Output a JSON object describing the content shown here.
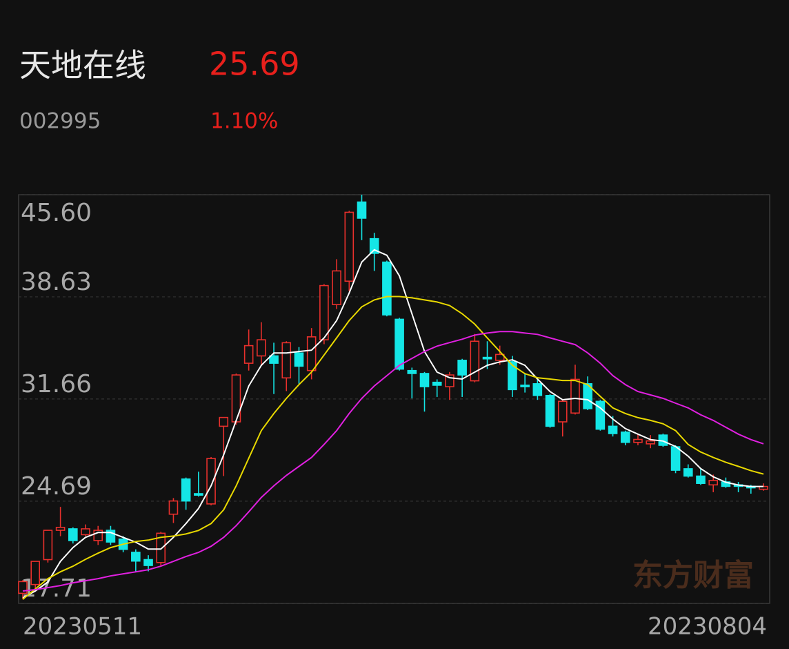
{
  "chart_data": {
    "type": "candlestick",
    "title": "天地在线",
    "price": 25.69,
    "code": "002995",
    "change": {
      "value": 1.1,
      "label": "1.10%"
    },
    "watermark": "东方财富",
    "x": [
      "20230511",
      null,
      null,
      null,
      null,
      null,
      null,
      null,
      null,
      null,
      null,
      null,
      null,
      null,
      null,
      null,
      null,
      null,
      null,
      null,
      null,
      null,
      null,
      null,
      null,
      null,
      null,
      null,
      null,
      null,
      null,
      null,
      null,
      null,
      null,
      null,
      null,
      null,
      null,
      null,
      null,
      null,
      null,
      null,
      null,
      null,
      null,
      null,
      null,
      null,
      null,
      null,
      null,
      null,
      null,
      null,
      null,
      null,
      null,
      "20230804"
    ],
    "open": [
      18.4,
      19.0,
      20.7,
      22.7,
      22.8,
      22.4,
      22.0,
      22.7,
      22.1,
      21.2,
      20.7,
      20.5,
      23.8,
      26.2,
      25.2,
      24.5,
      29.8,
      30.1,
      34.1,
      34.6,
      34.6,
      33.1,
      34.8,
      33.6,
      35.7,
      38.1,
      39.7,
      45.1,
      42.6,
      41.0,
      37.1,
      33.6,
      33.4,
      32.8,
      32.5,
      34.3,
      32.9,
      34.5,
      34.3,
      34.2,
      32.6,
      32.7,
      31.9,
      30.1,
      30.7,
      32.7,
      31.5,
      29.8,
      29.4,
      28.7,
      28.6,
      29.2,
      28.4,
      26.9,
      26.4,
      25.8,
      26.0,
      25.8,
      25.7,
      25.5
    ],
    "high": [
      19.3,
      20.6,
      22.7,
      24.3,
      22.9,
      23.1,
      23.0,
      23.0,
      22.3,
      21.4,
      21.0,
      22.6,
      24.9,
      26.3,
      26.7,
      27.7,
      30.4,
      33.4,
      36.4,
      36.9,
      35.5,
      35.6,
      35.2,
      36.5,
      39.5,
      41.2,
      44.5,
      45.6,
      43.0,
      41.1,
      37.2,
      33.8,
      33.5,
      33.0,
      33.5,
      34.4,
      36.1,
      35.6,
      35.3,
      34.6,
      33.4,
      33.1,
      32.0,
      31.6,
      34.0,
      33.2,
      31.6,
      30.5,
      29.5,
      29.3,
      29.2,
      29.3,
      28.5,
      27.2,
      26.9,
      26.5,
      26.3,
      26.0,
      25.8,
      25.9
    ],
    "low": [
      18.0,
      18.6,
      20.5,
      22.3,
      21.8,
      22.3,
      21.7,
      21.7,
      21.2,
      19.9,
      19.9,
      20.3,
      23.2,
      24.1,
      25.0,
      24.4,
      26.4,
      29.9,
      33.6,
      34.0,
      32.0,
      32.2,
      32.7,
      33.0,
      35.4,
      37.8,
      39.0,
      42.5,
      40.4,
      37.3,
      33.6,
      31.7,
      30.8,
      31.8,
      31.6,
      31.8,
      32.8,
      33.7,
      34.0,
      31.8,
      32.1,
      31.6,
      29.7,
      29.1,
      30.6,
      30.9,
      29.5,
      29.1,
      28.5,
      28.5,
      28.3,
      28.4,
      26.6,
      26.3,
      25.8,
      25.3,
      25.6,
      25.3,
      25.2,
      25.4
    ],
    "close": [
      19.2,
      20.58,
      22.7,
      22.9,
      22.0,
      22.8,
      22.7,
      21.9,
      21.4,
      20.6,
      20.3,
      22.5,
      24.7,
      24.7,
      25.1,
      27.6,
      30.4,
      33.3,
      35.3,
      35.7,
      34.1,
      35.5,
      33.9,
      35.9,
      39.4,
      40.4,
      44.4,
      44.0,
      41.6,
      37.4,
      33.7,
      33.4,
      32.5,
      32.6,
      33.3,
      33.3,
      35.6,
      34.4,
      34.7,
      32.3,
      32.5,
      31.9,
      29.8,
      31.5,
      33.0,
      31.0,
      29.6,
      29.3,
      28.7,
      28.9,
      28.8,
      28.5,
      26.8,
      26.4,
      25.9,
      26.1,
      25.7,
      25.7,
      25.6,
      25.69
    ],
    "up_color": "#e8302c",
    "down_color": "#14e6e6",
    "series": [
      {
        "color": "#ffffff",
        "values": [
          18.09,
          18.56,
          19.17,
          20.58,
          21.52,
          22.22,
          22.55,
          22.55,
          22.22,
          21.89,
          21.42,
          21.42,
          22.22,
          23.16,
          24.19,
          25.74,
          27.85,
          30.2,
          32.55,
          33.96,
          34.8,
          34.8,
          34.9,
          34.99,
          35.83,
          37.01,
          38.89,
          41.0,
          41.84,
          41.47,
          40.06,
          37.48,
          34.9,
          33.49,
          33.11,
          33.02,
          33.49,
          33.96,
          34.19,
          34.33,
          33.96,
          33.02,
          32.17,
          31.61,
          31.7,
          31.61,
          31.05,
          30.29,
          29.64,
          29.26,
          28.89,
          28.79,
          28.42,
          27.76,
          26.91,
          26.35,
          25.98,
          25.79,
          25.69,
          25.69
        ]
      },
      {
        "color": "#e8d800",
        "values": [
          17.99,
          18.7,
          19.4,
          19.87,
          20.25,
          20.72,
          21.14,
          21.52,
          21.75,
          21.94,
          22.03,
          22.22,
          22.31,
          22.45,
          22.69,
          23.16,
          24.1,
          25.74,
          27.62,
          29.5,
          30.67,
          31.7,
          32.64,
          33.49,
          34.66,
          35.83,
          37.01,
          37.95,
          38.42,
          38.65,
          38.65,
          38.56,
          38.42,
          38.28,
          38.04,
          37.48,
          36.77,
          35.83,
          34.9,
          33.96,
          33.39,
          33.11,
          33.02,
          32.92,
          32.92,
          32.64,
          31.84,
          31.05,
          30.67,
          30.39,
          30.2,
          29.97,
          29.5,
          28.56,
          28.04,
          27.67,
          27.34,
          27.06,
          26.77,
          26.54
        ]
      },
      {
        "color": "#e020e0",
        "values": [
          18.56,
          18.65,
          18.79,
          18.93,
          19.12,
          19.26,
          19.4,
          19.59,
          19.73,
          19.87,
          20.01,
          20.25,
          20.58,
          20.91,
          21.19,
          21.61,
          22.22,
          23.02,
          23.96,
          24.94,
          25.74,
          26.45,
          27.06,
          27.67,
          28.56,
          29.5,
          30.67,
          31.7,
          32.55,
          33.25,
          33.96,
          34.43,
          34.9,
          35.27,
          35.51,
          35.74,
          36.02,
          36.16,
          36.26,
          36.26,
          36.16,
          36.07,
          35.83,
          35.6,
          35.37,
          34.8,
          34.1,
          33.25,
          32.64,
          32.17,
          31.94,
          31.7,
          31.37,
          31.05,
          30.58,
          30.2,
          29.73,
          29.26,
          28.89,
          28.6
        ]
      }
    ],
    "ylim": [
      17.71,
      45.6
    ],
    "yticks": [
      17.71,
      24.69,
      31.66,
      38.63,
      {
        "value": 45.6,
        "label": "45.60"
      }
    ],
    "grid": true
  }
}
